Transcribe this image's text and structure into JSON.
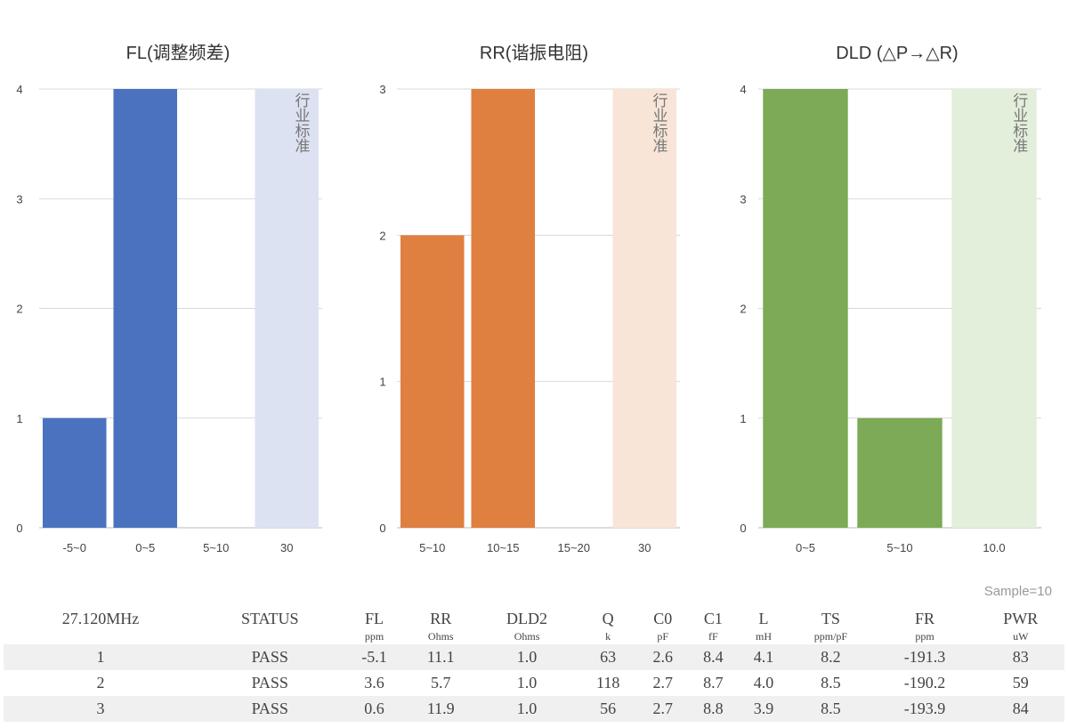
{
  "chart_data": [
    {
      "type": "bar",
      "title": "FL(调整频差)",
      "categories": [
        "-5~0",
        "0~5",
        "5~10",
        "30"
      ],
      "values": [
        1,
        4,
        0,
        4
      ],
      "standard_index": 3,
      "standard_label": "行业标准",
      "ylim": [
        0,
        4
      ],
      "yticks": [
        0,
        1,
        2,
        3,
        4
      ],
      "color": "#4a72bf",
      "std_color": "#dce2f1"
    },
    {
      "type": "bar",
      "title": "RR(谐振电阻)",
      "categories": [
        "5~10",
        "10~15",
        "15~20",
        "30"
      ],
      "values": [
        2,
        3,
        0,
        3
      ],
      "standard_index": 3,
      "standard_label": "行业标准",
      "ylim": [
        0,
        3
      ],
      "yticks": [
        0,
        1,
        2,
        3
      ],
      "color": "#df7f40",
      "std_color": "#f8e5d8"
    },
    {
      "type": "bar",
      "title": "DLD (△P→△R)",
      "categories": [
        "0~5",
        "5~10",
        "10.0"
      ],
      "values": [
        4,
        1,
        4
      ],
      "standard_index": 2,
      "standard_label": "行业标准",
      "ylim": [
        0,
        4
      ],
      "yticks": [
        0,
        1,
        2,
        3,
        4
      ],
      "color": "#7caa56",
      "std_color": "#e3eedb"
    }
  ],
  "table": {
    "sample": "Sample=10",
    "headers": [
      "27.120MHz",
      "STATUS",
      "FL",
      "RR",
      "DLD2",
      "Q",
      "C0",
      "C1",
      "L",
      "TS",
      "FR",
      "PWR"
    ],
    "units": [
      "",
      "",
      "ppm",
      "Ohms",
      "Ohms",
      "k",
      "pF",
      "fF",
      "mH",
      "ppm/pF",
      "ppm",
      "uW"
    ],
    "rows": [
      [
        "1",
        "PASS",
        "-5.1",
        "11.1",
        "1.0",
        "63",
        "2.6",
        "8.4",
        "4.1",
        "8.2",
        "-191.3",
        "83"
      ],
      [
        "2",
        "PASS",
        "3.6",
        "5.7",
        "1.0",
        "118",
        "2.7",
        "8.7",
        "4.0",
        "8.5",
        "-190.2",
        "59"
      ],
      [
        "3",
        "PASS",
        "0.6",
        "11.9",
        "1.0",
        "56",
        "2.7",
        "8.8",
        "3.9",
        "8.5",
        "-193.9",
        "84"
      ]
    ]
  }
}
